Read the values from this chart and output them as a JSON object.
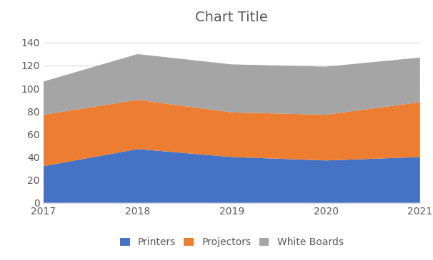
{
  "title": "Chart Title",
  "x": [
    2017,
    2018,
    2019,
    2020,
    2021
  ],
  "printers": [
    32,
    47,
    40,
    37,
    40
  ],
  "projectors": [
    45,
    43,
    39,
    40,
    48
  ],
  "whiteboards": [
    29,
    40,
    42,
    42,
    39
  ],
  "color_printers": "#4472c4",
  "color_projectors": "#ed7d31",
  "color_whiteboards": "#a5a5a5",
  "ylabel_vals": [
    0,
    20,
    40,
    60,
    80,
    100,
    120,
    140
  ],
  "ylim": [
    0,
    150
  ],
  "legend_labels": [
    "Printers",
    "Projectors",
    "White Boards"
  ],
  "title_fontsize": 14,
  "tick_fontsize": 10,
  "legend_fontsize": 10,
  "title_color": "#595959",
  "tick_color": "#595959",
  "bg_color": "#ffffff",
  "grid_color": "#d9d9d9"
}
